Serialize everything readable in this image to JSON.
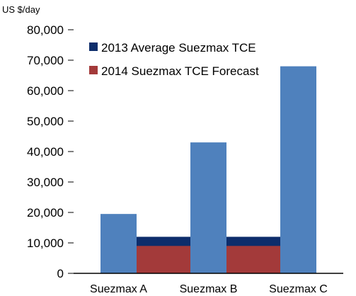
{
  "chart_data": {
    "type": "bar",
    "unit_label": "US $/day",
    "categories": [
      "Suezmax A",
      "Suezmax B",
      "Suezmax C"
    ],
    "series": [
      {
        "kind": "bar",
        "values": [
          19500,
          43000,
          68000
        ],
        "color": "#4F81BD"
      },
      {
        "kind": "band",
        "name": "2013 Average Suezmax TCE",
        "value": 12000,
        "color": "#0D2D6B"
      },
      {
        "kind": "band",
        "name": "2014 Suezmax TCE Forecast",
        "value": 9000,
        "color": "#A33A3A"
      }
    ],
    "ylim": [
      0,
      80000
    ],
    "yticks": [
      "0",
      "10,000",
      "20,000",
      "30,000",
      "40,000",
      "50,000",
      "60,000",
      "70,000",
      "80,000"
    ],
    "ytick_values": [
      0,
      10000,
      20000,
      30000,
      40000,
      50000,
      60000,
      70000,
      80000
    ],
    "legend_position": "top-center",
    "grid": false
  }
}
